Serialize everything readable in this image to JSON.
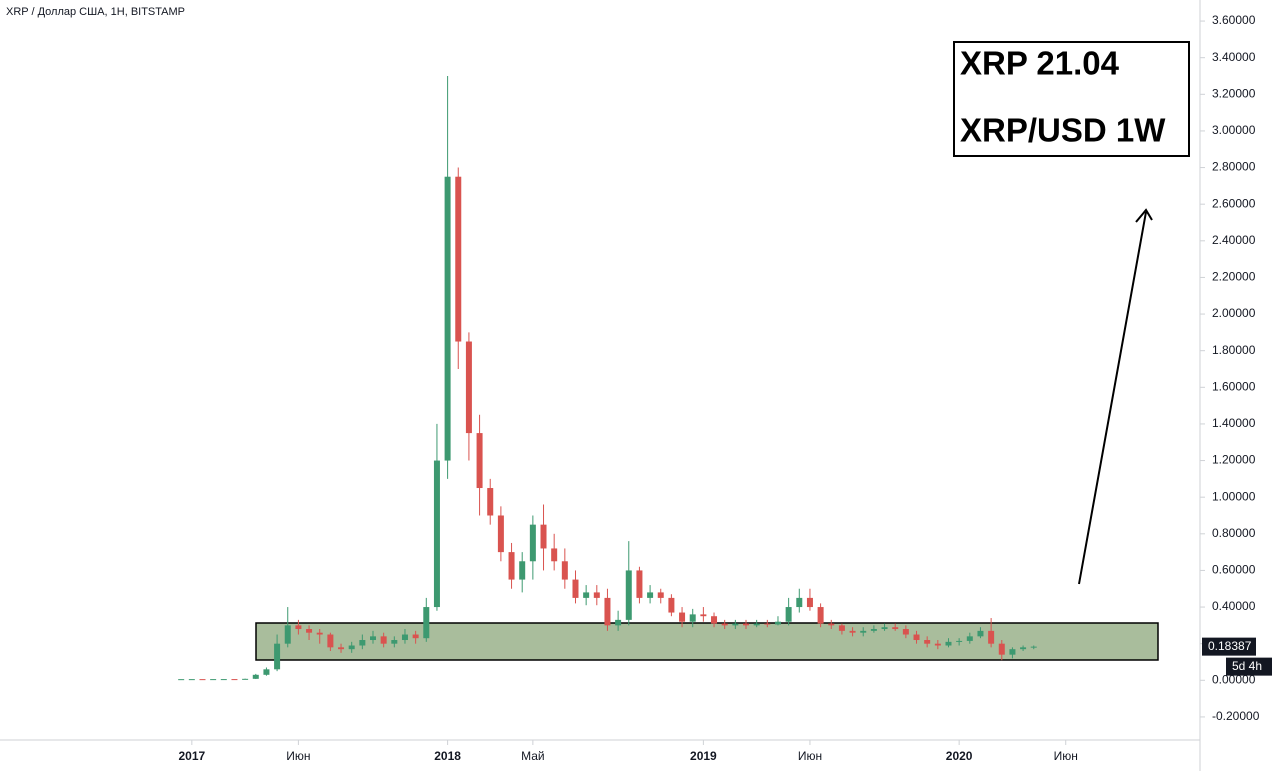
{
  "chart_data": {
    "type": "candlestick",
    "title": "XRP / Доллар США, 1Н, BITSTAMP",
    "annotations": [
      "XRP 21.04",
      "XRP/USD 1W"
    ],
    "countdown": "5d 4h",
    "up_color": "#3d9970",
    "down_color": "#d9534f",
    "x": [
      -0.5,
      0,
      0.5,
      1,
      1.5,
      2,
      2.5,
      3,
      3.5,
      4,
      4.5,
      5,
      5.5,
      6,
      6.5,
      7,
      7.5,
      8,
      8.5,
      9,
      9.5,
      10,
      10.5,
      11,
      11.5,
      12,
      12.5,
      13,
      13.5,
      14,
      14.5,
      15,
      15.5,
      16,
      16.5,
      17,
      17.5,
      18,
      18.5,
      19,
      19.5,
      20,
      20.5,
      21,
      21.5,
      22,
      22.5,
      23,
      23.5,
      24,
      24.5,
      25,
      25.5,
      26,
      26.5,
      27,
      27.5,
      28,
      28.5,
      29,
      29.5,
      30,
      30.5,
      31,
      31.5,
      32,
      32.5,
      33,
      33.5,
      34,
      34.5,
      35,
      35.5,
      36,
      36.5,
      37,
      37.5,
      38,
      38.5,
      39,
      39.5
    ],
    "open": [
      0.0062,
      0.0063,
      0.0064,
      0.0063,
      0.0065,
      0.0066,
      0.0063,
      0.008,
      0.03,
      0.06,
      0.2,
      0.3,
      0.28,
      0.26,
      0.25,
      0.18,
      0.17,
      0.19,
      0.22,
      0.24,
      0.2,
      0.22,
      0.25,
      0.23,
      0.4,
      1.2,
      2.75,
      1.85,
      1.35,
      1.05,
      0.9,
      0.7,
      0.55,
      0.65,
      0.85,
      0.72,
      0.65,
      0.55,
      0.45,
      0.48,
      0.45,
      0.3,
      0.33,
      0.6,
      0.45,
      0.48,
      0.45,
      0.37,
      0.32,
      0.36,
      0.35,
      0.31,
      0.3,
      0.31,
      0.3,
      0.31,
      0.305,
      0.32,
      0.4,
      0.45,
      0.4,
      0.31,
      0.3,
      0.27,
      0.26,
      0.27,
      0.28,
      0.29,
      0.28,
      0.25,
      0.22,
      0.2,
      0.19,
      0.21,
      0.215,
      0.24,
      0.27,
      0.2,
      0.14,
      0.17,
      0.18
    ],
    "high": [
      0.0064,
      0.0065,
      0.0065,
      0.0066,
      0.0067,
      0.0067,
      0.009,
      0.035,
      0.07,
      0.25,
      0.4,
      0.33,
      0.3,
      0.28,
      0.26,
      0.2,
      0.21,
      0.25,
      0.27,
      0.26,
      0.24,
      0.28,
      0.27,
      0.45,
      1.4,
      3.3,
      2.8,
      1.9,
      1.45,
      1.1,
      0.95,
      0.75,
      0.7,
      0.9,
      0.96,
      0.8,
      0.72,
      0.6,
      0.52,
      0.52,
      0.5,
      0.38,
      0.76,
      0.62,
      0.52,
      0.5,
      0.47,
      0.4,
      0.39,
      0.4,
      0.37,
      0.33,
      0.33,
      0.33,
      0.33,
      0.33,
      0.35,
      0.45,
      0.5,
      0.5,
      0.42,
      0.33,
      0.31,
      0.29,
      0.29,
      0.3,
      0.31,
      0.31,
      0.3,
      0.27,
      0.24,
      0.22,
      0.23,
      0.23,
      0.26,
      0.29,
      0.34,
      0.22,
      0.18,
      0.19,
      0.19
    ],
    "low": [
      0.0061,
      0.0062,
      0.0062,
      0.0062,
      0.0064,
      0.0062,
      0.0062,
      0.007,
      0.025,
      0.05,
      0.18,
      0.25,
      0.22,
      0.2,
      0.16,
      0.15,
      0.15,
      0.17,
      0.2,
      0.18,
      0.18,
      0.2,
      0.2,
      0.21,
      0.38,
      1.1,
      1.7,
      1.2,
      0.9,
      0.85,
      0.65,
      0.5,
      0.48,
      0.55,
      0.6,
      0.6,
      0.5,
      0.42,
      0.41,
      0.41,
      0.27,
      0.27,
      0.3,
      0.42,
      0.42,
      0.42,
      0.35,
      0.29,
      0.29,
      0.32,
      0.29,
      0.28,
      0.28,
      0.28,
      0.29,
      0.29,
      0.3,
      0.3,
      0.37,
      0.38,
      0.29,
      0.28,
      0.25,
      0.24,
      0.24,
      0.26,
      0.27,
      0.27,
      0.23,
      0.2,
      0.18,
      0.17,
      0.18,
      0.19,
      0.2,
      0.23,
      0.18,
      0.11,
      0.12,
      0.16,
      0.17
    ],
    "close": [
      0.0063,
      0.0064,
      0.0063,
      0.0065,
      0.0066,
      0.0063,
      0.008,
      0.03,
      0.06,
      0.2,
      0.3,
      0.28,
      0.26,
      0.25,
      0.18,
      0.17,
      0.19,
      0.22,
      0.24,
      0.2,
      0.22,
      0.25,
      0.23,
      0.4,
      1.2,
      2.75,
      1.85,
      1.35,
      1.05,
      0.9,
      0.7,
      0.55,
      0.65,
      0.85,
      0.72,
      0.65,
      0.55,
      0.45,
      0.48,
      0.45,
      0.3,
      0.33,
      0.6,
      0.45,
      0.48,
      0.45,
      0.37,
      0.32,
      0.36,
      0.35,
      0.31,
      0.3,
      0.31,
      0.3,
      0.31,
      0.305,
      0.32,
      0.4,
      0.45,
      0.4,
      0.31,
      0.3,
      0.27,
      0.26,
      0.27,
      0.28,
      0.29,
      0.28,
      0.25,
      0.22,
      0.2,
      0.19,
      0.21,
      0.215,
      0.24,
      0.27,
      0.2,
      0.14,
      0.17,
      0.18,
      0.18387
    ],
    "xlim": [
      -9,
      47.3
    ],
    "ylim": [
      -0.326,
      3.715
    ],
    "xticks": [
      {
        "value": 0,
        "label": "2017"
      },
      {
        "value": 5,
        "label": "Июн"
      },
      {
        "value": 12,
        "label": "2018"
      },
      {
        "value": 16,
        "label": "Май"
      },
      {
        "value": 24,
        "label": "2019"
      },
      {
        "value": 29,
        "label": "Июн"
      },
      {
        "value": 36,
        "label": "2020"
      },
      {
        "value": 41,
        "label": "Июн"
      }
    ],
    "yticks": [
      {
        "value": -0.2,
        "label": "-0.20000"
      },
      {
        "value": 0,
        "label": "0.00000"
      },
      {
        "value": 0.2,
        "label": "0.20000"
      },
      {
        "value": 0.4,
        "label": "0.40000"
      },
      {
        "value": 0.6,
        "label": "0.60000"
      },
      {
        "value": 0.8,
        "label": "0.80000"
      },
      {
        "value": 1,
        "label": "1.00000"
      },
      {
        "value": 1.2,
        "label": "1.20000"
      },
      {
        "value": 1.4,
        "label": "1.40000"
      },
      {
        "value": 1.6,
        "label": "1.60000"
      },
      {
        "value": 1.8,
        "label": "1.80000"
      },
      {
        "value": 2,
        "label": "2.00000"
      },
      {
        "value": 2.2,
        "label": "2.20000"
      },
      {
        "value": 2.4,
        "label": "2.40000"
      },
      {
        "value": 2.6,
        "label": "2.60000"
      },
      {
        "value": 2.8,
        "label": "2.80000"
      },
      {
        "value": 3,
        "label": "3.00000"
      },
      {
        "value": 3.2,
        "label": "3.20000"
      },
      {
        "value": 3.4,
        "label": "3.40000"
      },
      {
        "value": 3.6,
        "label": "3.60000"
      }
    ]
  }
}
